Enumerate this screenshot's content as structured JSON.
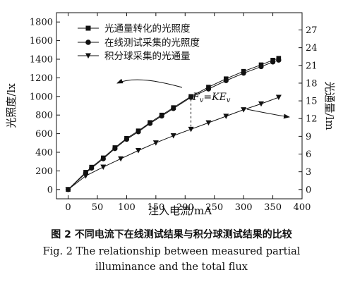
{
  "chart_data": {
    "type": "line",
    "xlabel": "注入电流/mA",
    "ylabel_left": "光照度/lx",
    "ylabel_right": "光通量/lm",
    "xlim": [
      -20,
      400
    ],
    "ylim_left": [
      -100,
      1900
    ],
    "ylim_right": [
      -1.575,
      29.925
    ],
    "x_ticks": [
      0,
      50,
      100,
      150,
      200,
      250,
      300,
      350,
      400
    ],
    "y_ticks_left": [
      0,
      200,
      400,
      600,
      800,
      1000,
      1200,
      1400,
      1600,
      1800
    ],
    "y_ticks_right": [
      0,
      3,
      6,
      9,
      12,
      15,
      18,
      21,
      24,
      27
    ],
    "legend_position": "top-left",
    "series": [
      {
        "name": "光通量转化的光照度",
        "marker": "square",
        "axis": "left",
        "x": [
          0,
          30,
          40,
          60,
          80,
          100,
          120,
          140,
          160,
          180,
          210,
          240,
          270,
          300,
          330,
          350,
          360
        ],
        "y": [
          0,
          185,
          240,
          340,
          450,
          550,
          630,
          720,
          800,
          880,
          1000,
          1100,
          1190,
          1270,
          1340,
          1390,
          1410
        ]
      },
      {
        "name": "在线测试采集的光照度",
        "marker": "circle",
        "axis": "left",
        "x": [
          0,
          30,
          40,
          60,
          80,
          100,
          120,
          140,
          160,
          180,
          210,
          240,
          270,
          300,
          330,
          350,
          360
        ],
        "y": [
          0,
          175,
          230,
          330,
          440,
          540,
          620,
          710,
          790,
          870,
          990,
          1080,
          1170,
          1250,
          1320,
          1370,
          1390
        ]
      },
      {
        "name": "积分球采集的光通量",
        "marker": "triangle-down",
        "axis": "right",
        "x": [
          0,
          30,
          60,
          90,
          120,
          150,
          180,
          210,
          240,
          270,
          300,
          330,
          360
        ],
        "y": [
          0,
          2.3,
          3.8,
          5.2,
          6.6,
          7.9,
          9.1,
          10.2,
          11.3,
          12.4,
          13.5,
          14.5,
          15.6
        ]
      }
    ],
    "annotation": {
      "lhs": "F",
      "lhs_sub": "v",
      "eq": "=",
      "rhs": "KE",
      "rhs_sub": "v",
      "x": 210
    }
  },
  "caption": {
    "cn": "图 2   不同电流下在线测试结果与积分球测试结果的比较",
    "en_line1": "Fig. 2   The relationship between measured partial",
    "en_line2": "illuminance and the total flux"
  }
}
